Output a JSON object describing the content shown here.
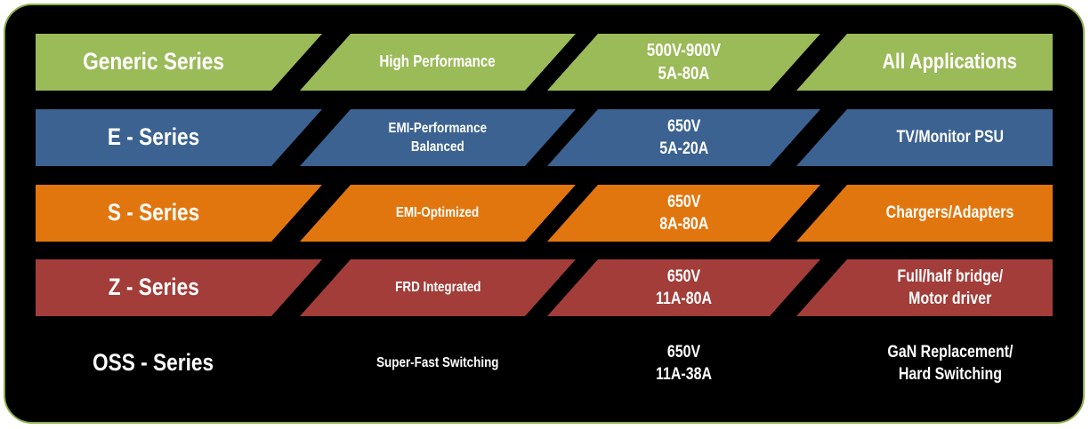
{
  "colors": {
    "panel_background": "#000000",
    "page_background": "#ffffff",
    "panel_border_green": "#8dac49",
    "text_white": "#ffffff",
    "row_generic_green": "#9bba58",
    "row_e_blue": "#3b6291",
    "row_s_orange": "#e2760e",
    "row_z_red": "#a23d39",
    "row_oss_background": "transparent"
  },
  "table": {
    "rows": [
      {
        "series": "Generic Series",
        "feature": "High Performance",
        "ratings": "500V-900V\n5A-80A",
        "application": "All Applications",
        "color": "#9bba58"
      },
      {
        "series": "E - Series",
        "feature": "EMI-Performance\nBalanced",
        "ratings": "650V\n5A-20A",
        "application": "TV/Monitor PSU",
        "color": "#3b6291"
      },
      {
        "series": "S - Series",
        "feature": "EMI-Optimized",
        "ratings": "650V\n8A-80A",
        "application": "Chargers/Adapters",
        "color": "#e2760e"
      },
      {
        "series": "Z - Series",
        "feature": "FRD Integrated",
        "ratings": "650V\n11A-80A",
        "application": "Full/half bridge/\nMotor driver",
        "color": "#a23d39"
      },
      {
        "series": "OSS - Series",
        "feature": "Super-Fast Switching",
        "ratings": "650V\n11A-38A",
        "application": "GaN Replacement/\nHard Switching",
        "color": "transparent"
      }
    ]
  }
}
